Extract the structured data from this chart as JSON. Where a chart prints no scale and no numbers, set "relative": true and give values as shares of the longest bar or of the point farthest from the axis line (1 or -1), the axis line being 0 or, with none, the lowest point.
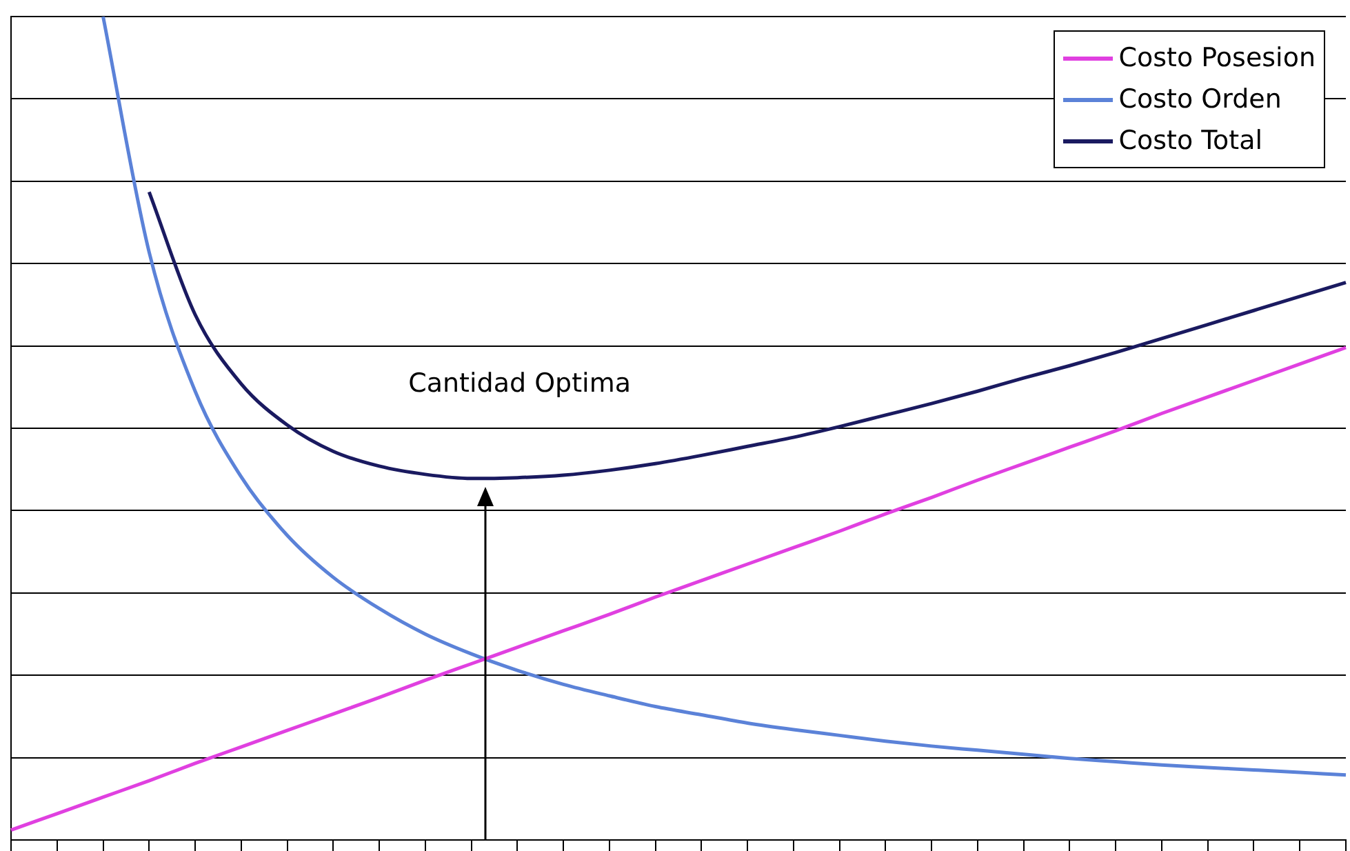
{
  "chart_data": {
    "type": "line",
    "relative": true,
    "grid": "y",
    "legend": "top right",
    "marker": "none",
    "line_style": "solid",
    "annotations": [
      "Cantidad Optima"
    ],
    "categories": [
      null,
      null,
      null,
      null,
      null,
      null,
      null,
      null,
      null,
      null,
      null,
      null,
      null,
      null,
      null,
      null,
      null,
      null,
      null,
      null,
      null,
      null,
      null,
      null,
      null,
      null,
      null,
      null,
      null,
      null
    ],
    "series": [
      {
        "name": "Costo Posesion",
        "color": "#e040e0",
        "values": [
          0.012,
          0.032,
          0.052,
          0.072,
          0.093,
          0.113,
          0.133,
          0.153,
          0.173,
          0.194,
          0.214,
          0.234,
          0.254,
          0.274,
          0.295,
          0.315,
          0.335,
          0.355,
          0.375,
          0.396,
          0.416,
          0.437,
          0.457,
          0.477,
          0.497,
          0.518,
          0.538,
          0.558,
          0.578,
          0.598
        ]
      },
      {
        "name": "Costo Orden",
        "color": "#5b82d8",
        "values": [
          null,
          null,
          1,
          0.714,
          0.545,
          0.441,
          0.37,
          0.319,
          0.281,
          0.25,
          0.226,
          0.206,
          0.189,
          0.175,
          0.162,
          0.152,
          0.142,
          0.134,
          0.127,
          0.12,
          0.114,
          0.109,
          0.104,
          0.099,
          0.095,
          0.091,
          0.088,
          0.085,
          0.082,
          0.079
        ]
      },
      {
        "name": "Costo Total",
        "color": "#1a1a60",
        "values": [
          null,
          null,
          null,
          0.787,
          0.638,
          0.554,
          0.504,
          0.472,
          0.454,
          0.444,
          0.439,
          0.44,
          0.443,
          0.449,
          0.457,
          0.467,
          0.478,
          0.489,
          0.502,
          0.516,
          0.53,
          0.545,
          0.561,
          0.576,
          0.592,
          0.609,
          0.626,
          0.643,
          0.66,
          0.677
        ]
      }
    ]
  }
}
